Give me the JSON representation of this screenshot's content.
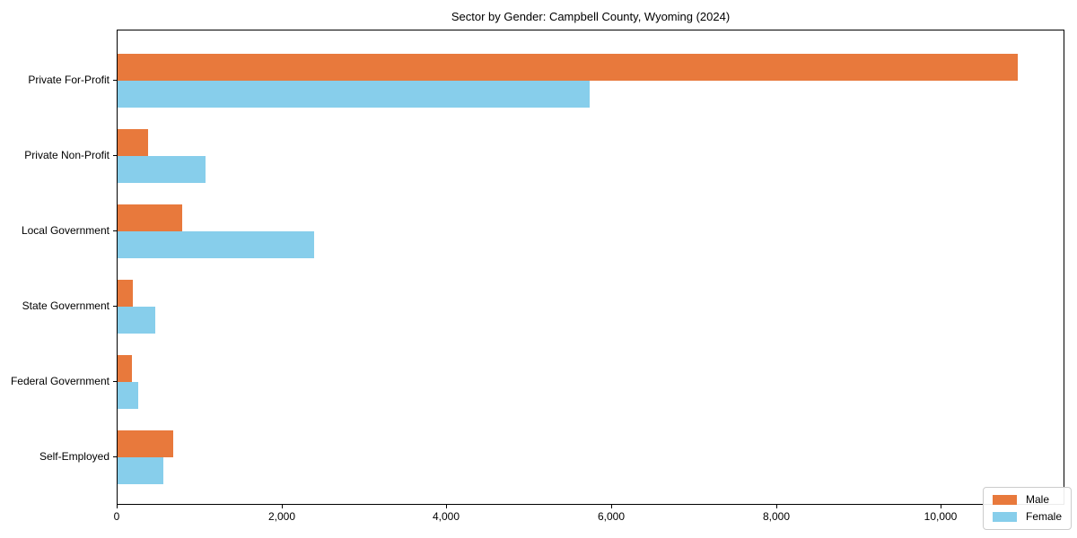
{
  "figure": {
    "background": "#ffffff"
  },
  "chart_data": {
    "type": "bar",
    "orientation": "horizontal",
    "title": "Sector by Gender: Campbell County, Wyoming (2024)",
    "categories": [
      "Private For-Profit",
      "Private Non-Profit",
      "Local Government",
      "State Government",
      "Federal Government",
      "Self-Employed"
    ],
    "series": [
      {
        "name": "Male",
        "color": "#e8793c",
        "values": [
          10920,
          370,
          780,
          190,
          170,
          680
        ]
      },
      {
        "name": "Female",
        "color": "#87ceeb",
        "values": [
          5730,
          1070,
          2380,
          460,
          250,
          550
        ]
      }
    ],
    "xlabel": "",
    "ylabel": "",
    "xlim": [
      0,
      11500
    ],
    "xticks": [
      0,
      2000,
      4000,
      6000,
      8000,
      10000
    ],
    "xticklabels": [
      "0",
      "2,000",
      "4,000",
      "6,000",
      "8,000",
      "10,000"
    ],
    "grid": false,
    "legend": {
      "position": "lower right",
      "entries": [
        "Male",
        "Female"
      ]
    },
    "spine_color": "#000000",
    "text_color": "#000000"
  }
}
